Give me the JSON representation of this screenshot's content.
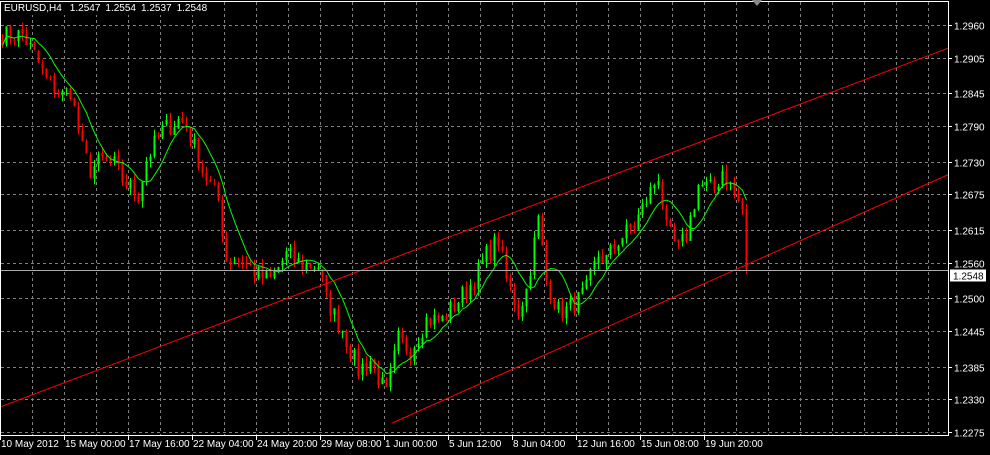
{
  "header": {
    "symbol": "EURUSD,H4",
    "open": "1.2547",
    "high": "1.2554",
    "low": "1.2537",
    "close": "1.2548"
  },
  "colors": {
    "background": "#000000",
    "bull": "#00ff00",
    "bear": "#ff0000",
    "ma": "#00ff00",
    "channel": "#ff0000",
    "grid": "#7f7f7f",
    "axis": "#ffffff"
  },
  "chart_data": {
    "type": "candlestick",
    "symbol": "EURUSD",
    "timeframe": "H4",
    "grid": true,
    "ylim": [
      1.2275,
      1.2985
    ],
    "y_ticks": [
      "1.2960",
      "1.2905",
      "1.2845",
      "1.2790",
      "1.2730",
      "1.2675",
      "1.2615",
      "1.2560",
      "1.2500",
      "1.2445",
      "1.2385",
      "1.2330",
      "1.2275"
    ],
    "x_ticks": [
      "10 May 2012",
      "15 May 00:00",
      "17 May 16:00",
      "22 May 04:00",
      "24 May 20:00",
      "29 May 08:00",
      "1 Jun 00:00",
      "5 Jun 12:00",
      "8 Jun 04:00",
      "12 Jun 16:00",
      "15 Jun 08:00",
      "19 Jun 20:00"
    ],
    "bars_per_tick": 16,
    "current_price": "1.2548",
    "close_path_bar_price": [
      [
        0,
        1.2943
      ],
      [
        5,
        1.2943
      ],
      [
        8,
        1.291
      ],
      [
        11,
        1.2867
      ],
      [
        15,
        1.2842
      ],
      [
        17,
        1.2851
      ],
      [
        20,
        1.275
      ],
      [
        22,
        1.2716
      ],
      [
        25,
        1.2733
      ],
      [
        28,
        1.2724
      ],
      [
        30,
        1.2699
      ],
      [
        34,
        1.2674
      ],
      [
        36,
        1.2733
      ],
      [
        40,
        1.2783
      ],
      [
        44,
        1.28
      ],
      [
        46,
        1.2792
      ],
      [
        50,
        1.2716
      ],
      [
        54,
        1.2665
      ],
      [
        56,
        1.2565
      ],
      [
        60,
        1.2565
      ],
      [
        64,
        1.2539
      ],
      [
        67,
        1.2531
      ],
      [
        71,
        1.2573
      ],
      [
        75,
        1.2556
      ],
      [
        79,
        1.2556
      ],
      [
        81,
        1.2497
      ],
      [
        85,
        1.2447
      ],
      [
        89,
        1.2379
      ],
      [
        92,
        1.2396
      ],
      [
        96,
        1.2337
      ],
      [
        99,
        1.243
      ],
      [
        102,
        1.2413
      ],
      [
        106,
        1.2464
      ],
      [
        110,
        1.2464
      ],
      [
        114,
        1.2497
      ],
      [
        118,
        1.2531
      ],
      [
        121,
        1.2573
      ],
      [
        124,
        1.2598
      ],
      [
        126,
        1.2531
      ],
      [
        129,
        1.248
      ],
      [
        131,
        1.2514
      ],
      [
        134,
        1.2632
      ],
      [
        136,
        1.2531
      ],
      [
        139,
        1.248
      ],
      [
        141,
        1.248
      ],
      [
        144,
        1.2497
      ],
      [
        146,
        1.2514
      ],
      [
        149,
        1.2573
      ],
      [
        151,
        1.2565
      ],
      [
        154,
        1.2598
      ],
      [
        158,
        1.2623
      ],
      [
        161,
        1.2665
      ],
      [
        164,
        1.2708
      ],
      [
        166,
        1.2615
      ],
      [
        169,
        1.2581
      ],
      [
        171,
        1.2606
      ],
      [
        174,
        1.2691
      ],
      [
        178,
        1.2682
      ],
      [
        180,
        1.2716
      ],
      [
        183,
        1.2674
      ],
      [
        185,
        1.2649
      ],
      [
        186,
        1.2548
      ]
    ],
    "moving_average_period": 8,
    "trendlines": [
      {
        "from": [
          0,
          1.2317
        ],
        "to": [
          237,
          1.2921
        ]
      },
      {
        "from": [
          98,
          1.229
        ],
        "to": [
          237,
          1.2708
        ]
      }
    ]
  }
}
